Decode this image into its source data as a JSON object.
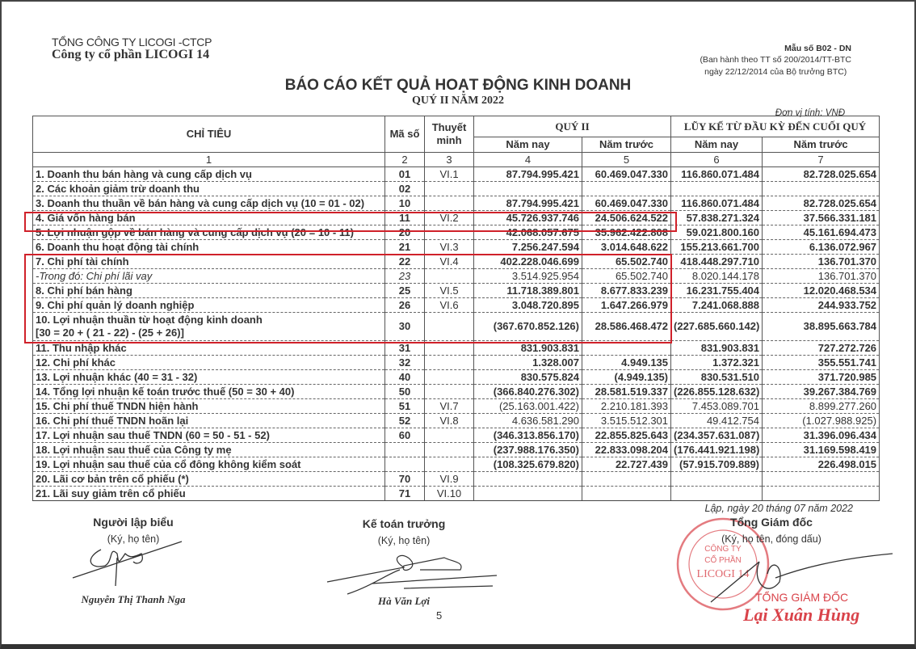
{
  "header": {
    "parent_company": "TỔNG CÔNG TY LICOGI -CTCP",
    "company": "Công ty cổ phần LICOGI 14",
    "form_code": "Mẫu số B02 - DN",
    "form_issued_line1": "(Ban hành theo TT số 200/2014/TT-BTC",
    "form_issued_line2": "ngày 22/12/2014 của Bộ trưởng BTC)",
    "title": "BÁO CÁO KẾT QUẢ HOẠT ĐỘNG KINH DOANH",
    "subtitle": "QUÝ II NĂM 2022",
    "unit": "Đơn vị tính: VNĐ"
  },
  "table": {
    "headers": {
      "indicator": "CHỈ TIÊU",
      "code": "Mã số",
      "note": "Thuyết minh",
      "quarter": "QUÝ II",
      "ytd": "LŨY KẾ TỪ ĐẦU KỲ ĐẾN CUỐI QUÝ",
      "this_year": "Năm nay",
      "last_year": "Năm trước",
      "col_numbers": [
        "1",
        "2",
        "3",
        "4",
        "5",
        "6",
        "7"
      ]
    },
    "rows": [
      {
        "label": "1. Doanh thu bán hàng và cung cấp dịch vụ",
        "code": "01",
        "note": "VI.1",
        "q_now": "87.794.995.421",
        "q_prev": "60.469.047.330",
        "ytd_now": "116.860.071.484",
        "ytd_prev": "82.728.025.654"
      },
      {
        "label": "2. Các khoản giảm trừ doanh thu",
        "code": "02",
        "note": "",
        "q_now": "",
        "q_prev": "",
        "ytd_now": "",
        "ytd_prev": ""
      },
      {
        "label": "3. Doanh thu thuần về bán hàng và cung cấp dịch vụ (10 = 01 - 02)",
        "code": "10",
        "note": "",
        "q_now": "87.794.995.421",
        "q_prev": "60.469.047.330",
        "ytd_now": "116.860.071.484",
        "ytd_prev": "82.728.025.654"
      },
      {
        "label": "4. Giá vốn hàng bán",
        "code": "11",
        "note": "VI.2",
        "q_now": "45.726.937.746",
        "q_prev": "24.506.624.522",
        "ytd_now": "57.838.271.324",
        "ytd_prev": "37.566.331.181"
      },
      {
        "label": "5. Lợi nhuận gộp về bán hàng và cung cấp dịch vụ (20 = 10 - 11)",
        "code": "20",
        "note": "",
        "q_now": "42.068.057.675",
        "q_prev": "35.962.422.808",
        "ytd_now": "59.021.800.160",
        "ytd_prev": "45.161.694.473"
      },
      {
        "label": "6. Doanh thu hoạt động tài chính",
        "code": "21",
        "note": "VI.3",
        "q_now": "7.256.247.594",
        "q_prev": "3.014.648.622",
        "ytd_now": "155.213.661.700",
        "ytd_prev": "6.136.072.967"
      },
      {
        "label": "7. Chi phí tài chính",
        "code": "22",
        "note": "VI.4",
        "q_now": "402.228.046.699",
        "q_prev": "65.502.740",
        "ytd_now": "418.448.297.710",
        "ytd_prev": "136.701.370"
      },
      {
        "label": "-Trong đó: Chi phí lãi vay",
        "code": "23",
        "note": "",
        "q_now": "3.514.925.954",
        "q_prev": "65.502.740",
        "ytd_now": "8.020.144.178",
        "ytd_prev": "136.701.370",
        "style": "italic"
      },
      {
        "label": "8. Chi phí bán hàng",
        "code": "25",
        "note": "VI.5",
        "q_now": "11.718.389.801",
        "q_prev": "8.677.833.239",
        "ytd_now": "16.231.755.404",
        "ytd_prev": "12.020.468.534"
      },
      {
        "label": "9. Chi phí quản lý doanh nghiệp",
        "code": "26",
        "note": "VI.6",
        "q_now": "3.048.720.895",
        "q_prev": "1.647.266.979",
        "ytd_now": "7.241.068.888",
        "ytd_prev": "244.933.752"
      },
      {
        "label": "10. Lợi nhuận thuần từ hoạt động kinh doanh",
        "label2": "[30 = 20 + ( 21 - 22) - (25 + 26)]",
        "code": "30",
        "note": "",
        "q_now": "(367.670.852.126)",
        "q_prev": "28.586.468.472",
        "ytd_now": "(227.685.660.142)",
        "ytd_prev": "38.895.663.784",
        "style": "double"
      },
      {
        "label": "11. Thu nhập khác",
        "code": "31",
        "note": "",
        "q_now": "831.903.831",
        "q_prev": "",
        "ytd_now": "831.903.831",
        "ytd_prev": "727.272.726"
      },
      {
        "label": "12. Chi phí khác",
        "code": "32",
        "note": "",
        "q_now": "1.328.007",
        "q_prev": "4.949.135",
        "ytd_now": "1.372.321",
        "ytd_prev": "355.551.741"
      },
      {
        "label": "13. Lợi nhuận khác (40 = 31 - 32)",
        "code": "40",
        "note": "",
        "q_now": "830.575.824",
        "q_prev": "(4.949.135)",
        "ytd_now": "830.531.510",
        "ytd_prev": "371.720.985"
      },
      {
        "label": "14. Tổng lợi nhuận kế toán trước thuế (50 = 30 + 40)",
        "code": "50",
        "note": "",
        "q_now": "(366.840.276.302)",
        "q_prev": "28.581.519.337",
        "ytd_now": "(226.855.128.632)",
        "ytd_prev": "39.267.384.769"
      },
      {
        "label": "15. Chi phí thuế TNDN hiện hành",
        "code": "51",
        "note": "VI.7",
        "q_now": "(25.163.001.422)",
        "q_prev": "2.210.181.393",
        "ytd_now": "7.453.089.701",
        "ytd_prev": "8.899.277.260",
        "style": "light"
      },
      {
        "label": "16. Chi phí thuế TNDN hoãn lại",
        "code": "52",
        "note": "VI.8",
        "q_now": "4.636.581.290",
        "q_prev": "3.515.512.301",
        "ytd_now": "49.412.754",
        "ytd_prev": "(1.027.988.925)",
        "style": "light"
      },
      {
        "label": "17. Lợi nhuận sau thuế TNDN (60 = 50 - 51 - 52)",
        "code": "60",
        "note": "",
        "q_now": "(346.313.856.170)",
        "q_prev": "22.855.825.643",
        "ytd_now": "(234.357.631.087)",
        "ytd_prev": "31.396.096.434"
      },
      {
        "label": "18. Lợi nhuận sau thuế của Công ty mẹ",
        "code": "",
        "note": "",
        "q_now": "(237.988.176.350)",
        "q_prev": "22.833.098.204",
        "ytd_now": "(176.441.921.198)",
        "ytd_prev": "31.169.598.419"
      },
      {
        "label": "19. Lợi nhuận sau thuế của cổ đông không kiểm soát",
        "code": "",
        "note": "",
        "q_now": "(108.325.679.820)",
        "q_prev": "22.727.439",
        "ytd_now": "(57.915.709.889)",
        "ytd_prev": "226.498.015"
      },
      {
        "label": "20. Lãi cơ bản trên cổ phiếu (*)",
        "code": "70",
        "note": "VI.9",
        "q_now": "",
        "q_prev": "",
        "ytd_now": "",
        "ytd_prev": ""
      },
      {
        "label": "21. Lãi suy giảm trên cổ phiếu",
        "code": "71",
        "note": "VI.10",
        "q_now": "",
        "q_prev": "",
        "ytd_now": "",
        "ytd_prev": ""
      }
    ]
  },
  "footer": {
    "date": "Lập, ngày 20  tháng  07 năm 2022",
    "preparer_title": "Người lập biểu",
    "preparer_sub": "(Ký, họ tên)",
    "preparer_name": "Nguyễn Thị Thanh Nga",
    "accountant_title": "Kế toán trưởng",
    "accountant_sub": "(Ký, họ tên)",
    "accountant_name": "Hà Văn Lợi",
    "director_title": "Tổng Giám đốc",
    "director_sub": "(Ký, họ tên, đóng dấu)",
    "stamp_text": "CÔNG TY CỔ PHẦN LICOGI 14",
    "director_role": "TỔNG GIÁM ĐỐC",
    "director_name": "Lại Xuân Hùng",
    "page_number": "5"
  },
  "colors": {
    "highlight": "#d0212a",
    "stamp": "#d9434a"
  }
}
